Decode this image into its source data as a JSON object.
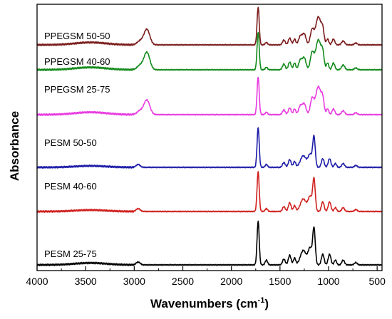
{
  "chart_data": {
    "type": "line",
    "title": "",
    "xlabel": "Wavenumbers (cm",
    "xlabel_sup": "-1",
    "xlabel_close": ")",
    "ylabel": "Absorbance",
    "xlim": [
      4000,
      450
    ],
    "x_reversed": true,
    "xticks": [
      4000,
      3500,
      3000,
      2500,
      2000,
      1500,
      1000,
      500
    ],
    "ytick_labels": "none",
    "stacked_offset": true,
    "grid": false,
    "legend": "inline labels left of each trace",
    "series": [
      {
        "name": "PPEGSM 50-50",
        "color": "#7b1c1c",
        "offset": 5,
        "peaks": [
          {
            "x": 3450,
            "h": 0.05,
            "w": 160
          },
          {
            "x": 2940,
            "h": 0.08,
            "w": 30
          },
          {
            "x": 2870,
            "h": 0.32,
            "w": 30
          },
          {
            "x": 1725,
            "h": 0.78,
            "w": 11
          },
          {
            "x": 1640,
            "h": 0.05,
            "w": 12
          },
          {
            "x": 1460,
            "h": 0.1,
            "w": 14
          },
          {
            "x": 1400,
            "h": 0.14,
            "w": 14
          },
          {
            "x": 1350,
            "h": 0.12,
            "w": 12
          },
          {
            "x": 1290,
            "h": 0.18,
            "w": 18
          },
          {
            "x": 1250,
            "h": 0.22,
            "w": 18
          },
          {
            "x": 1170,
            "h": 0.3,
            "w": 18
          },
          {
            "x": 1105,
            "h": 0.58,
            "w": 28
          },
          {
            "x": 1060,
            "h": 0.25,
            "w": 14
          },
          {
            "x": 1010,
            "h": 0.12,
            "w": 12
          },
          {
            "x": 950,
            "h": 0.12,
            "w": 14
          },
          {
            "x": 850,
            "h": 0.08,
            "w": 16
          },
          {
            "x": 720,
            "h": 0.04,
            "w": 14
          }
        ]
      },
      {
        "name": "PPEGSM 40-60",
        "color": "#138a1b",
        "offset": 4,
        "peaks": [
          {
            "x": 3450,
            "h": 0.05,
            "w": 160
          },
          {
            "x": 2940,
            "h": 0.09,
            "w": 30
          },
          {
            "x": 2870,
            "h": 0.36,
            "w": 30
          },
          {
            "x": 1725,
            "h": 0.78,
            "w": 11
          },
          {
            "x": 1640,
            "h": 0.05,
            "w": 12
          },
          {
            "x": 1460,
            "h": 0.12,
            "w": 14
          },
          {
            "x": 1400,
            "h": 0.16,
            "w": 14
          },
          {
            "x": 1350,
            "h": 0.14,
            "w": 12
          },
          {
            "x": 1290,
            "h": 0.2,
            "w": 18
          },
          {
            "x": 1250,
            "h": 0.24,
            "w": 18
          },
          {
            "x": 1170,
            "h": 0.34,
            "w": 18
          },
          {
            "x": 1105,
            "h": 0.62,
            "w": 28
          },
          {
            "x": 1060,
            "h": 0.28,
            "w": 14
          },
          {
            "x": 1010,
            "h": 0.14,
            "w": 12
          },
          {
            "x": 950,
            "h": 0.14,
            "w": 14
          },
          {
            "x": 850,
            "h": 0.1,
            "w": 16
          },
          {
            "x": 720,
            "h": 0.04,
            "w": 14
          }
        ]
      },
      {
        "name": "PPEGSM 25-75",
        "color": "#e83ae0",
        "offset": 3,
        "peaks": [
          {
            "x": 3450,
            "h": 0.05,
            "w": 160
          },
          {
            "x": 2940,
            "h": 0.08,
            "w": 30
          },
          {
            "x": 2870,
            "h": 0.3,
            "w": 30
          },
          {
            "x": 1725,
            "h": 0.78,
            "w": 11
          },
          {
            "x": 1640,
            "h": 0.05,
            "w": 12
          },
          {
            "x": 1460,
            "h": 0.1,
            "w": 14
          },
          {
            "x": 1400,
            "h": 0.14,
            "w": 14
          },
          {
            "x": 1350,
            "h": 0.12,
            "w": 12
          },
          {
            "x": 1290,
            "h": 0.18,
            "w": 18
          },
          {
            "x": 1250,
            "h": 0.22,
            "w": 18
          },
          {
            "x": 1170,
            "h": 0.32,
            "w": 18
          },
          {
            "x": 1105,
            "h": 0.58,
            "w": 28
          },
          {
            "x": 1060,
            "h": 0.26,
            "w": 14
          },
          {
            "x": 1010,
            "h": 0.12,
            "w": 12
          },
          {
            "x": 950,
            "h": 0.12,
            "w": 14
          },
          {
            "x": 850,
            "h": 0.08,
            "w": 16
          },
          {
            "x": 720,
            "h": 0.04,
            "w": 14
          }
        ]
      },
      {
        "name": "PESM 50-50",
        "color": "#1c1ca8",
        "offset": 2,
        "peaks": [
          {
            "x": 3450,
            "h": 0.03,
            "w": 160
          },
          {
            "x": 2960,
            "h": 0.06,
            "w": 20
          },
          {
            "x": 1725,
            "h": 0.82,
            "w": 11
          },
          {
            "x": 1640,
            "h": 0.06,
            "w": 12
          },
          {
            "x": 1460,
            "h": 0.1,
            "w": 14
          },
          {
            "x": 1400,
            "h": 0.16,
            "w": 14
          },
          {
            "x": 1350,
            "h": 0.12,
            "w": 12
          },
          {
            "x": 1260,
            "h": 0.24,
            "w": 30
          },
          {
            "x": 1190,
            "h": 0.26,
            "w": 20
          },
          {
            "x": 1150,
            "h": 0.62,
            "w": 13
          },
          {
            "x": 1060,
            "h": 0.18,
            "w": 14
          },
          {
            "x": 990,
            "h": 0.18,
            "w": 14
          },
          {
            "x": 930,
            "h": 0.08,
            "w": 12
          },
          {
            "x": 850,
            "h": 0.08,
            "w": 14
          },
          {
            "x": 720,
            "h": 0.04,
            "w": 14
          }
        ]
      },
      {
        "name": "PESM 40-60",
        "color": "#d0201e",
        "offset": 1,
        "peaks": [
          {
            "x": 3450,
            "h": 0.03,
            "w": 160
          },
          {
            "x": 2960,
            "h": 0.06,
            "w": 20
          },
          {
            "x": 1725,
            "h": 0.82,
            "w": 11
          },
          {
            "x": 1640,
            "h": 0.06,
            "w": 12
          },
          {
            "x": 1460,
            "h": 0.1,
            "w": 14
          },
          {
            "x": 1400,
            "h": 0.18,
            "w": 14
          },
          {
            "x": 1350,
            "h": 0.12,
            "w": 12
          },
          {
            "x": 1260,
            "h": 0.26,
            "w": 30
          },
          {
            "x": 1190,
            "h": 0.3,
            "w": 20
          },
          {
            "x": 1150,
            "h": 0.66,
            "w": 13
          },
          {
            "x": 1060,
            "h": 0.2,
            "w": 14
          },
          {
            "x": 990,
            "h": 0.2,
            "w": 14
          },
          {
            "x": 930,
            "h": 0.08,
            "w": 12
          },
          {
            "x": 850,
            "h": 0.08,
            "w": 14
          },
          {
            "x": 720,
            "h": 0.04,
            "w": 14
          }
        ]
      },
      {
        "name": "PESM 25-75",
        "color": "#000000",
        "offset": 0,
        "peaks": [
          {
            "x": 3450,
            "h": 0.04,
            "w": 160
          },
          {
            "x": 2960,
            "h": 0.06,
            "w": 20
          },
          {
            "x": 1725,
            "h": 0.9,
            "w": 11
          },
          {
            "x": 1640,
            "h": 0.1,
            "w": 12
          },
          {
            "x": 1460,
            "h": 0.12,
            "w": 14
          },
          {
            "x": 1400,
            "h": 0.2,
            "w": 14
          },
          {
            "x": 1350,
            "h": 0.14,
            "w": 12
          },
          {
            "x": 1260,
            "h": 0.3,
            "w": 30
          },
          {
            "x": 1190,
            "h": 0.34,
            "w": 20
          },
          {
            "x": 1150,
            "h": 0.74,
            "w": 13
          },
          {
            "x": 1060,
            "h": 0.22,
            "w": 14
          },
          {
            "x": 990,
            "h": 0.22,
            "w": 14
          },
          {
            "x": 930,
            "h": 0.1,
            "w": 12
          },
          {
            "x": 850,
            "h": 0.1,
            "w": 14
          },
          {
            "x": 720,
            "h": 0.05,
            "w": 14
          }
        ]
      }
    ]
  }
}
